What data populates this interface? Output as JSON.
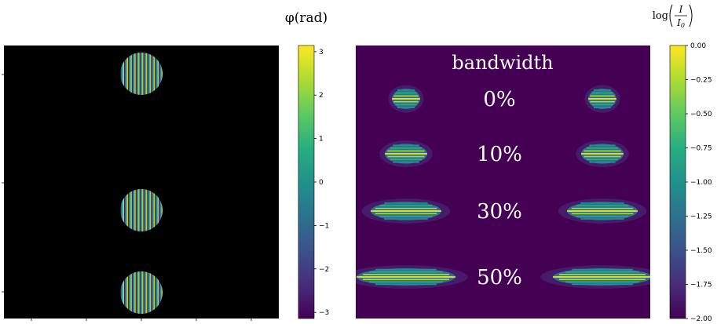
{
  "chart_data": [
    {
      "type": "heatmap",
      "panel": "phase-mask",
      "content": "three circular apertures with vertical phase fringes on black background",
      "apertures": [
        {
          "fringe_count": 11
        },
        {
          "fringe_count": 11
        },
        {
          "fringe_count": 11
        }
      ],
      "colorbar": {
        "title": "φ(rad)",
        "range": [
          -3.14159,
          3.14159
        ],
        "ticks": [
          3,
          2,
          1,
          0,
          -1,
          -2,
          -3
        ],
        "tick_labels": [
          "3",
          "2",
          "1",
          "0",
          "−1",
          "−2",
          "−3"
        ],
        "colormap": "viridis"
      }
    },
    {
      "type": "heatmap",
      "panel": "far-field-intensity",
      "header": "bandwidth",
      "rows": [
        {
          "bandwidth_pct": 0,
          "label": "0%"
        },
        {
          "bandwidth_pct": 10,
          "label": "10%"
        },
        {
          "bandwidth_pct": 30,
          "label": "30%"
        },
        {
          "bandwidth_pct": 50,
          "label": "50%"
        }
      ],
      "colorbar": {
        "title_left": "log",
        "numerator": "I",
        "denominator": "I0",
        "range": [
          -2.0,
          0.0
        ],
        "ticks": [
          0.0,
          -0.25,
          -0.5,
          -0.75,
          -1.0,
          -1.25,
          -1.5,
          -1.75,
          -2.0
        ],
        "tick_labels": [
          "0.00",
          "−0.25",
          "−0.50",
          "−0.75",
          "−1.00",
          "−1.25",
          "−1.50",
          "−1.75",
          "−2.00"
        ],
        "colormap": "viridis"
      }
    }
  ],
  "colors": {
    "viridis": [
      "#440154",
      "#472d7b",
      "#3b528b",
      "#2c728e",
      "#21918c",
      "#28ae80",
      "#5ec962",
      "#addc30",
      "#fde725"
    ],
    "panel_bg_left": "#000000",
    "panel_bg_right": "#440154"
  }
}
